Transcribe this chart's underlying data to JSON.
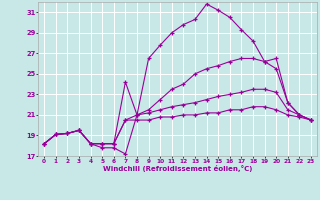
{
  "xlabel": "Windchill (Refroidissement éolien,°C)",
  "bg_color": "#c8e8e8",
  "grid_color": "#ffffff",
  "line_color": "#990099",
  "xlim": [
    -0.5,
    23.5
  ],
  "ylim": [
    17,
    32
  ],
  "xticks": [
    0,
    1,
    2,
    3,
    4,
    5,
    6,
    7,
    8,
    9,
    10,
    11,
    12,
    13,
    14,
    15,
    16,
    17,
    18,
    19,
    20,
    21,
    22,
    23
  ],
  "yticks": [
    17,
    19,
    21,
    23,
    25,
    27,
    29,
    31
  ],
  "lines": [
    [
      18.2,
      19.1,
      19.2,
      19.5,
      18.2,
      17.8,
      17.8,
      17.2,
      21.0,
      26.5,
      27.8,
      29.0,
      29.8,
      30.3,
      31.8,
      31.2,
      30.5,
      29.3,
      28.2,
      26.2,
      26.5,
      22.2,
      21.0,
      20.5
    ],
    [
      18.2,
      19.1,
      19.2,
      19.5,
      18.2,
      18.2,
      18.2,
      24.2,
      21.0,
      21.5,
      22.5,
      23.5,
      24.0,
      25.0,
      25.5,
      25.8,
      26.2,
      26.5,
      26.5,
      26.2,
      25.5,
      22.2,
      21.0,
      20.5
    ],
    [
      18.2,
      19.1,
      19.2,
      19.5,
      18.2,
      18.2,
      18.2,
      20.5,
      21.0,
      21.2,
      21.5,
      21.8,
      22.0,
      22.2,
      22.5,
      22.8,
      23.0,
      23.2,
      23.5,
      23.5,
      23.2,
      21.5,
      21.0,
      20.5
    ],
    [
      18.2,
      19.1,
      19.2,
      19.5,
      18.2,
      18.2,
      18.2,
      20.5,
      20.5,
      20.5,
      20.8,
      20.8,
      21.0,
      21.0,
      21.2,
      21.2,
      21.5,
      21.5,
      21.8,
      21.8,
      21.5,
      21.0,
      20.8,
      20.5
    ]
  ]
}
